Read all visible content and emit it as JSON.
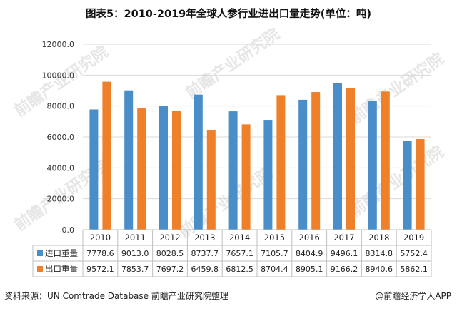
{
  "title": "图表5：2010-2019年全球人参行业进出口量走势(单位：吨)",
  "source_text": "资料来源：UN Comtrade Database 前瞻产业研究院整理",
  "brand_text": "@前瞻经济学人APP",
  "watermark_text": "前瞻产业研究院",
  "colors": {
    "import": "#4a8ec9",
    "export": "#f07f2a",
    "grid": "#d9d9d9",
    "axis": "#bfbfbf",
    "watermark": "#e6e6e6"
  },
  "chart_data": {
    "type": "bar",
    "categories": [
      "2010",
      "2011",
      "2012",
      "2013",
      "2014",
      "2015",
      "2016",
      "2017",
      "2018",
      "2019"
    ],
    "series": [
      {
        "name": "进口重量",
        "color": "#4a8ec9",
        "values": [
          7778.6,
          9013.0,
          8028.5,
          8737.7,
          7657.1,
          7105.7,
          8404.9,
          9496.1,
          8314.8,
          5752.4
        ],
        "labels": [
          "7778.6",
          "9013.0",
          "8028.5",
          "8737.7",
          "7657.1",
          "7105.7",
          "8404.9",
          "9496.1",
          "8314.8",
          "5752.4"
        ]
      },
      {
        "name": "出口重量",
        "color": "#f07f2a",
        "values": [
          9572.1,
          7853.7,
          7697.2,
          6459.8,
          6812.5,
          8704.4,
          8905.1,
          9166.2,
          8940.6,
          5862.1
        ],
        "labels": [
          "9572.1",
          "7853.7",
          "7697.2",
          "6459.8",
          "6812.5",
          "8704.4",
          "8905.1",
          "9166.2",
          "8940.6",
          "5862.1"
        ]
      }
    ],
    "yticks": [
      "0.0",
      "2000.0",
      "4000.0",
      "6000.0",
      "8000.0",
      "10000.0",
      "12000.0"
    ],
    "ylim": [
      0,
      12000
    ],
    "grid": true,
    "legend": "data-table"
  }
}
